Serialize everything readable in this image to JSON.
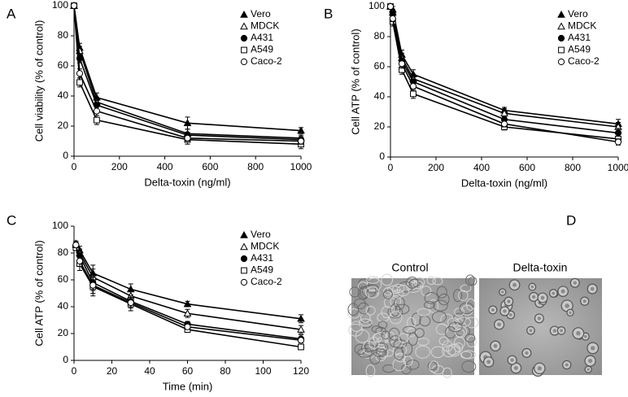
{
  "chart_data": [
    {
      "type": "line",
      "panel": "A",
      "ylabel": "Cell viability  (% of control)",
      "xlabel": "Delta-toxin (ng/ml)",
      "x": [
        0,
        25,
        100,
        500,
        1000
      ],
      "xlim": [
        0,
        1000
      ],
      "xticks": [
        0,
        200,
        400,
        600,
        800,
        1000
      ],
      "ylim": [
        0,
        100
      ],
      "yticks": [
        0,
        20,
        40,
        60,
        80,
        100
      ],
      "legend": "upper right",
      "series": [
        {
          "name": "Vero",
          "color": "#000000",
          "marker": "triangle-filled",
          "values": [
            100,
            72,
            39,
            22,
            17
          ],
          "errors": [
            0,
            3,
            3,
            4,
            2
          ]
        },
        {
          "name": "MDCK",
          "color": "#000000",
          "marker": "triangle-open",
          "values": [
            100,
            70,
            36,
            15,
            12
          ],
          "errors": [
            0,
            3,
            3,
            3,
            2
          ]
        },
        {
          "name": "A431",
          "color": "#000000",
          "marker": "circle-filled",
          "values": [
            100,
            65,
            34,
            14,
            11
          ],
          "errors": [
            0,
            3,
            3,
            2,
            2
          ]
        },
        {
          "name": "A549",
          "color": "#000000",
          "marker": "square-open",
          "values": [
            100,
            49,
            24,
            11,
            8
          ],
          "errors": [
            0,
            3,
            3,
            3,
            3
          ]
        },
        {
          "name": "Caco-2",
          "color": "#000000",
          "marker": "circle-open",
          "values": [
            100,
            55,
            30,
            12,
            10
          ],
          "errors": [
            0,
            3,
            3,
            2,
            2
          ]
        }
      ]
    },
    {
      "type": "line",
      "panel": "B",
      "ylabel": "Cell ATP  (% of control)",
      "xlabel": "Delta-toxin (ng/ml)",
      "x": [
        0,
        10,
        50,
        100,
        500,
        1000
      ],
      "xlim": [
        0,
        1000
      ],
      "xticks": [
        0,
        200,
        400,
        600,
        800,
        1000
      ],
      "ylim": [
        0,
        100
      ],
      "yticks": [
        0,
        20,
        40,
        60,
        80,
        100
      ],
      "legend": "upper right",
      "series": [
        {
          "name": "Vero",
          "color": "#000000",
          "marker": "triangle-filled",
          "values": [
            100,
            98,
            68,
            55,
            31,
            22
          ],
          "errors": [
            0,
            2,
            3,
            3,
            2,
            3
          ]
        },
        {
          "name": "MDCK",
          "color": "#000000",
          "marker": "triangle-open",
          "values": [
            100,
            96,
            66,
            52,
            29,
            20
          ],
          "errors": [
            0,
            2,
            3,
            3,
            3,
            3
          ]
        },
        {
          "name": "A431",
          "color": "#000000",
          "marker": "circle-filled",
          "values": [
            100,
            95,
            64,
            50,
            25,
            16
          ],
          "errors": [
            0,
            2,
            3,
            3,
            2,
            3
          ]
        },
        {
          "name": "A549",
          "color": "#000000",
          "marker": "square-open",
          "values": [
            100,
            90,
            58,
            42,
            20,
            12
          ],
          "errors": [
            0,
            3,
            3,
            3,
            2,
            3
          ]
        },
        {
          "name": "Caco-2",
          "color": "#000000",
          "marker": "circle-open",
          "values": [
            100,
            92,
            62,
            47,
            22,
            10
          ],
          "errors": [
            0,
            2,
            3,
            3,
            2,
            2
          ]
        }
      ]
    },
    {
      "type": "line",
      "panel": "C",
      "ylabel": "Cell ATP  (% of control)",
      "xlabel": "Time (min)",
      "x": [
        1,
        3,
        10,
        30,
        60,
        120
      ],
      "xlim": [
        0,
        120
      ],
      "xticks": [
        0,
        20,
        40,
        60,
        80,
        100,
        120
      ],
      "ylim": [
        0,
        100
      ],
      "yticks": [
        0,
        20,
        40,
        60,
        80,
        100
      ],
      "legend": "upper right",
      "series": [
        {
          "name": "Vero",
          "color": "#000000",
          "marker": "triangle-filled",
          "values": [
            87,
            82,
            65,
            53,
            42,
            31
          ],
          "errors": [
            2,
            3,
            6,
            4,
            2,
            3
          ]
        },
        {
          "name": "MDCK",
          "color": "#000000",
          "marker": "triangle-open",
          "values": [
            86,
            80,
            62,
            48,
            35,
            23
          ],
          "errors": [
            2,
            3,
            6,
            4,
            3,
            3
          ]
        },
        {
          "name": "A431",
          "color": "#000000",
          "marker": "circle-filled",
          "values": [
            86,
            78,
            58,
            44,
            27,
            16
          ],
          "errors": [
            2,
            4,
            6,
            4,
            2,
            3
          ]
        },
        {
          "name": "A549",
          "color": "#000000",
          "marker": "square-open",
          "values": [
            84,
            72,
            55,
            42,
            23,
            10
          ],
          "errors": [
            2,
            5,
            7,
            5,
            2,
            2
          ]
        },
        {
          "name": "Caco-2",
          "color": "#000000",
          "marker": "circle-open",
          "values": [
            86,
            74,
            56,
            43,
            25,
            15
          ],
          "errors": [
            2,
            4,
            6,
            4,
            2,
            2
          ]
        }
      ]
    }
  ],
  "panel_d": {
    "panel": "D",
    "images": [
      "Control",
      "Delta-toxin"
    ]
  }
}
